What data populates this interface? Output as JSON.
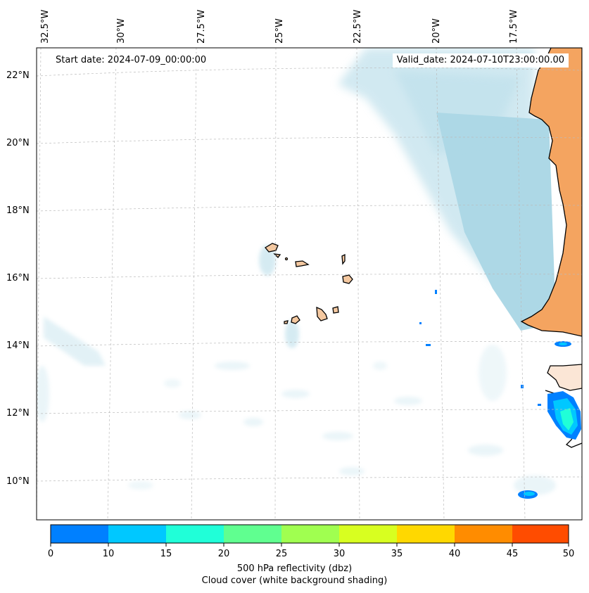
{
  "map": {
    "start_label": "Start date: 2024-07-09_00:00:00",
    "valid_label": "Valid_date: 2024-07-10T23:00:00.00",
    "extent": {
      "lon_min": -33.0,
      "lon_max": -15.0,
      "lat_min": 9.0,
      "lat_max": 22.8
    },
    "lon_ticks": [
      "32.5°W",
      "30°W",
      "27.5°W",
      "25°W",
      "22.5°W",
      "20°W",
      "17.5°W"
    ],
    "lat_ticks": [
      "22°N",
      "20°N",
      "18°N",
      "16°N",
      "14°N",
      "12°N",
      "10°N"
    ],
    "colors": {
      "cloud": "#add8e6",
      "land": "#f4a460",
      "coast": "#000000",
      "grid": "#bbbbbb"
    }
  },
  "colorbar": {
    "title": "500 hPa reflectivity (dbz)",
    "subtitle": "Cloud cover (white background shading)",
    "ticks": [
      "0",
      "10",
      "15",
      "20",
      "25",
      "30",
      "35",
      "40",
      "45",
      "50"
    ],
    "colors": [
      "#0080ff",
      "#00c8ff",
      "#20ffd8",
      "#60ff90",
      "#a0ff50",
      "#d8ff20",
      "#ffd800",
      "#ff8c00",
      "#ff4c00"
    ]
  }
}
